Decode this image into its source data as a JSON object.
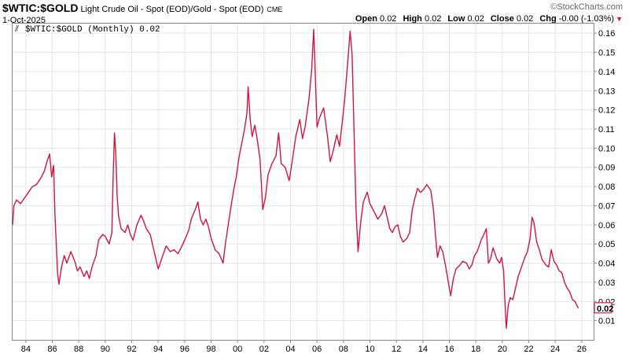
{
  "header": {
    "symbol": "$WTIC:$GOLD",
    "description": "Light Crude Oil - Spot (EOD)/Gold - Spot (EOD)",
    "exchange": "CME",
    "date": "1-Oct-2025",
    "brand": "StockCharts.com",
    "brand_prefix": "©",
    "ohlc": {
      "open_label": "Open",
      "open": "0.02",
      "high_label": "High",
      "high": "0.02",
      "low_label": "Low",
      "low": "0.02",
      "close_label": "Close",
      "close": "0.02",
      "chg_label": "Chg",
      "chg": "-0.00 (-1.03%)"
    }
  },
  "legend": {
    "text": "$WTIC:$GOLD (Monthly) 0.02"
  },
  "colors": {
    "series": "#d4143c",
    "grid": "#e6e6e6",
    "axis": "#888888",
    "last_value_box": "#d4143c"
  },
  "chart_data": {
    "type": "line",
    "title": "$WTIC:$GOLD Light Crude Oil - Spot (EOD)/Gold - Spot (EOD)",
    "xlabel": "",
    "ylabel": "",
    "xlim": [
      1983.0,
      2026.9
    ],
    "ylim": [
      0.0,
      0.165
    ],
    "grid": true,
    "last_value_label": "0.02",
    "x_ticks": [
      {
        "label": "84",
        "value": 1984
      },
      {
        "label": "86",
        "value": 1986
      },
      {
        "label": "88",
        "value": 1988
      },
      {
        "label": "90",
        "value": 1990
      },
      {
        "label": "92",
        "value": 1992
      },
      {
        "label": "94",
        "value": 1994
      },
      {
        "label": "96",
        "value": 1996
      },
      {
        "label": "98",
        "value": 1998
      },
      {
        "label": "00",
        "value": 2000
      },
      {
        "label": "02",
        "value": 2002
      },
      {
        "label": "04",
        "value": 2004
      },
      {
        "label": "06",
        "value": 2006
      },
      {
        "label": "08",
        "value": 2008
      },
      {
        "label": "10",
        "value": 2010
      },
      {
        "label": "12",
        "value": 2012
      },
      {
        "label": "14",
        "value": 2014
      },
      {
        "label": "16",
        "value": 2016
      },
      {
        "label": "18",
        "value": 2018
      },
      {
        "label": "20",
        "value": 2020
      },
      {
        "label": "22",
        "value": 2022
      },
      {
        "label": "24",
        "value": 2024
      },
      {
        "label": "26",
        "value": 2026
      }
    ],
    "y_ticks": [
      {
        "label": "0.01",
        "value": 0.01
      },
      {
        "label": "0.02",
        "value": 0.02
      },
      {
        "label": "0.03",
        "value": 0.03
      },
      {
        "label": "0.04",
        "value": 0.04
      },
      {
        "label": "0.05",
        "value": 0.05
      },
      {
        "label": "0.06",
        "value": 0.06
      },
      {
        "label": "0.07",
        "value": 0.07
      },
      {
        "label": "0.08",
        "value": 0.08
      },
      {
        "label": "0.09",
        "value": 0.09
      },
      {
        "label": "0.10",
        "value": 0.1
      },
      {
        "label": "0.11",
        "value": 0.11
      },
      {
        "label": "0.12",
        "value": 0.12
      },
      {
        "label": "0.13",
        "value": 0.13
      },
      {
        "label": "0.14",
        "value": 0.14
      },
      {
        "label": "0.15",
        "value": 0.15
      },
      {
        "label": "0.16",
        "value": 0.16
      }
    ],
    "series": [
      {
        "values": [
          [
            1983.0,
            0.06
          ],
          [
            1983.1,
            0.07
          ],
          [
            1983.3,
            0.073
          ],
          [
            1983.6,
            0.071
          ],
          [
            1983.9,
            0.074
          ],
          [
            1984.2,
            0.077
          ],
          [
            1984.5,
            0.08
          ],
          [
            1984.8,
            0.081
          ],
          [
            1985.1,
            0.084
          ],
          [
            1985.4,
            0.088
          ],
          [
            1985.6,
            0.093
          ],
          [
            1985.8,
            0.097
          ],
          [
            1985.95,
            0.085
          ],
          [
            1986.1,
            0.091
          ],
          [
            1986.2,
            0.065
          ],
          [
            1986.3,
            0.05
          ],
          [
            1986.4,
            0.035
          ],
          [
            1986.5,
            0.029
          ],
          [
            1986.7,
            0.038
          ],
          [
            1986.9,
            0.044
          ],
          [
            1987.1,
            0.04
          ],
          [
            1987.4,
            0.046
          ],
          [
            1987.7,
            0.041
          ],
          [
            1987.9,
            0.036
          ],
          [
            1988.1,
            0.038
          ],
          [
            1988.4,
            0.033
          ],
          [
            1988.6,
            0.036
          ],
          [
            1988.8,
            0.032
          ],
          [
            1989.0,
            0.038
          ],
          [
            1989.3,
            0.044
          ],
          [
            1989.5,
            0.052
          ],
          [
            1989.8,
            0.055
          ],
          [
            1990.0,
            0.054
          ],
          [
            1990.3,
            0.05
          ],
          [
            1990.5,
            0.056
          ],
          [
            1990.6,
            0.085
          ],
          [
            1990.7,
            0.108
          ],
          [
            1990.8,
            0.097
          ],
          [
            1990.9,
            0.075
          ],
          [
            1991.0,
            0.065
          ],
          [
            1991.2,
            0.058
          ],
          [
            1991.5,
            0.056
          ],
          [
            1991.7,
            0.06
          ],
          [
            1991.9,
            0.055
          ],
          [
            1992.1,
            0.052
          ],
          [
            1992.4,
            0.06
          ],
          [
            1992.7,
            0.065
          ],
          [
            1992.9,
            0.062
          ],
          [
            1993.1,
            0.058
          ],
          [
            1993.4,
            0.055
          ],
          [
            1993.6,
            0.049
          ],
          [
            1993.8,
            0.043
          ],
          [
            1994.0,
            0.037
          ],
          [
            1994.3,
            0.043
          ],
          [
            1994.6,
            0.049
          ],
          [
            1994.9,
            0.046
          ],
          [
            1995.2,
            0.047
          ],
          [
            1995.5,
            0.045
          ],
          [
            1995.8,
            0.049
          ],
          [
            1996.0,
            0.052
          ],
          [
            1996.3,
            0.057
          ],
          [
            1996.5,
            0.063
          ],
          [
            1996.8,
            0.068
          ],
          [
            1997.0,
            0.072
          ],
          [
            1997.2,
            0.063
          ],
          [
            1997.4,
            0.06
          ],
          [
            1997.6,
            0.063
          ],
          [
            1997.8,
            0.059
          ],
          [
            1998.0,
            0.053
          ],
          [
            1998.3,
            0.047
          ],
          [
            1998.6,
            0.045
          ],
          [
            1998.9,
            0.04
          ],
          [
            1999.1,
            0.051
          ],
          [
            1999.4,
            0.065
          ],
          [
            1999.7,
            0.078
          ],
          [
            1999.9,
            0.085
          ],
          [
            2000.1,
            0.095
          ],
          [
            2000.3,
            0.102
          ],
          [
            2000.5,
            0.109
          ],
          [
            2000.7,
            0.118
          ],
          [
            2000.8,
            0.132
          ],
          [
            2000.95,
            0.115
          ],
          [
            2001.1,
            0.106
          ],
          [
            2001.3,
            0.112
          ],
          [
            2001.5,
            0.104
          ],
          [
            2001.7,
            0.094
          ],
          [
            2001.9,
            0.068
          ],
          [
            2002.1,
            0.074
          ],
          [
            2002.3,
            0.086
          ],
          [
            2002.6,
            0.092
          ],
          [
            2002.9,
            0.096
          ],
          [
            2003.1,
            0.108
          ],
          [
            2003.3,
            0.092
          ],
          [
            2003.6,
            0.09
          ],
          [
            2003.9,
            0.083
          ],
          [
            2004.1,
            0.092
          ],
          [
            2004.4,
            0.106
          ],
          [
            2004.7,
            0.115
          ],
          [
            2004.9,
            0.105
          ],
          [
            2005.1,
            0.111
          ],
          [
            2005.4,
            0.126
          ],
          [
            2005.6,
            0.141
          ],
          [
            2005.75,
            0.162
          ],
          [
            2005.9,
            0.132
          ],
          [
            2006.0,
            0.111
          ],
          [
            2006.2,
            0.116
          ],
          [
            2006.5,
            0.121
          ],
          [
            2006.8,
            0.106
          ],
          [
            2007.0,
            0.093
          ],
          [
            2007.2,
            0.098
          ],
          [
            2007.5,
            0.107
          ],
          [
            2007.7,
            0.101
          ],
          [
            2007.9,
            0.113
          ],
          [
            2008.1,
            0.126
          ],
          [
            2008.3,
            0.143
          ],
          [
            2008.5,
            0.161
          ],
          [
            2008.65,
            0.149
          ],
          [
            2008.8,
            0.109
          ],
          [
            2008.95,
            0.068
          ],
          [
            2009.1,
            0.046
          ],
          [
            2009.3,
            0.061
          ],
          [
            2009.5,
            0.072
          ],
          [
            2009.8,
            0.077
          ],
          [
            2010.0,
            0.071
          ],
          [
            2010.3,
            0.067
          ],
          [
            2010.6,
            0.063
          ],
          [
            2010.9,
            0.066
          ],
          [
            2011.1,
            0.07
          ],
          [
            2011.3,
            0.064
          ],
          [
            2011.5,
            0.058
          ],
          [
            2011.7,
            0.056
          ],
          [
            2011.9,
            0.059
          ],
          [
            2012.1,
            0.06
          ],
          [
            2012.3,
            0.054
          ],
          [
            2012.5,
            0.051
          ],
          [
            2012.8,
            0.053
          ],
          [
            2013.0,
            0.056
          ],
          [
            2013.2,
            0.068
          ],
          [
            2013.4,
            0.074
          ],
          [
            2013.6,
            0.079
          ],
          [
            2013.8,
            0.077
          ],
          [
            2014.0,
            0.078
          ],
          [
            2014.3,
            0.081
          ],
          [
            2014.6,
            0.078
          ],
          [
            2014.8,
            0.068
          ],
          [
            2014.95,
            0.055
          ],
          [
            2015.1,
            0.043
          ],
          [
            2015.3,
            0.049
          ],
          [
            2015.5,
            0.046
          ],
          [
            2015.7,
            0.039
          ],
          [
            2015.95,
            0.029
          ],
          [
            2016.1,
            0.023
          ],
          [
            2016.3,
            0.032
          ],
          [
            2016.5,
            0.037
          ],
          [
            2016.8,
            0.039
          ],
          [
            2017.0,
            0.041
          ],
          [
            2017.3,
            0.04
          ],
          [
            2017.5,
            0.037
          ],
          [
            2017.7,
            0.039
          ],
          [
            2017.9,
            0.044
          ],
          [
            2018.1,
            0.046
          ],
          [
            2018.4,
            0.052
          ],
          [
            2018.6,
            0.055
          ],
          [
            2018.8,
            0.058
          ],
          [
            2018.95,
            0.04
          ],
          [
            2019.1,
            0.042
          ],
          [
            2019.3,
            0.048
          ],
          [
            2019.6,
            0.042
          ],
          [
            2019.8,
            0.04
          ],
          [
            2019.95,
            0.043
          ],
          [
            2020.1,
            0.036
          ],
          [
            2020.2,
            0.02
          ],
          [
            2020.3,
            0.006
          ],
          [
            2020.45,
            0.018
          ],
          [
            2020.6,
            0.022
          ],
          [
            2020.8,
            0.021
          ],
          [
            2021.0,
            0.027
          ],
          [
            2021.2,
            0.033
          ],
          [
            2021.5,
            0.039
          ],
          [
            2021.7,
            0.043
          ],
          [
            2021.9,
            0.046
          ],
          [
            2022.1,
            0.053
          ],
          [
            2022.25,
            0.064
          ],
          [
            2022.4,
            0.061
          ],
          [
            2022.6,
            0.051
          ],
          [
            2022.8,
            0.047
          ],
          [
            2023.0,
            0.042
          ],
          [
            2023.3,
            0.039
          ],
          [
            2023.5,
            0.038
          ],
          [
            2023.7,
            0.047
          ],
          [
            2023.9,
            0.041
          ],
          [
            2024.1,
            0.039
          ],
          [
            2024.3,
            0.036
          ],
          [
            2024.5,
            0.035
          ],
          [
            2024.7,
            0.03
          ],
          [
            2024.9,
            0.027
          ],
          [
            2025.1,
            0.025
          ],
          [
            2025.3,
            0.021
          ],
          [
            2025.5,
            0.02
          ],
          [
            2025.7,
            0.017
          ],
          [
            2025.75,
            0.0165
          ]
        ]
      }
    ]
  }
}
